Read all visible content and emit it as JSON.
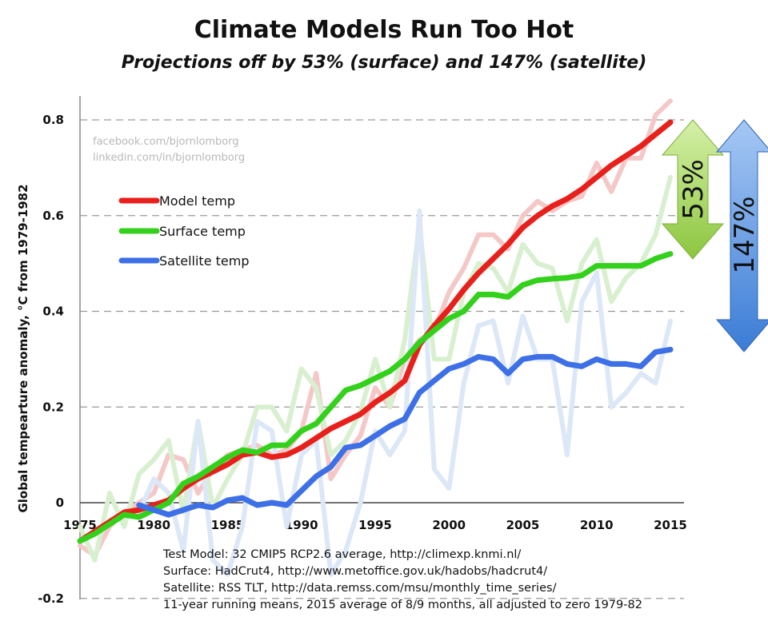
{
  "title": "Climate Models Run Too Hot",
  "subtitle": "Projections off by 53% (surface) and 147% (satellite)",
  "watermark": [
    "facebook.com/bjornlomborg",
    "linkedin.com/in/bjornlomborg"
  ],
  "notes": [
    "Test Model: 32 CMIP5 RCP2.6 average, http://climexp.knmi.nl/",
    "Surface: HadCrut4, http://www.metoffice.gov.uk/hadobs/hadcrut4/",
    "Satellite:  RSS TLT, http://data.remss.com/msu/monthly_time_series/",
    "11-year running means, 2015 average of 8/9 months, all adjusted to zero 1979-82"
  ],
  "annotations": {
    "surface_gap": "53%",
    "satellite_gap": "147%",
    "surface_arrow_color": "#9fd35a",
    "satellite_arrow_color": "#5b97e0"
  },
  "chart_data": {
    "type": "line",
    "title": "Climate Models Run Too Hot",
    "subtitle": "Projections off by 53% (surface) and 147% (satellite)",
    "xlabel": "",
    "ylabel": "Global tempearture anomaly, °C from 1979-1982",
    "xlim": [
      1975,
      2015
    ],
    "ylim": [
      -0.2,
      0.85
    ],
    "xticks": [
      1975,
      1980,
      1985,
      1990,
      1995,
      2000,
      2005,
      2010,
      2015
    ],
    "yticks": [
      -0.2,
      0,
      0.2,
      0.4,
      0.6,
      0.8
    ],
    "ytick_labels": [
      "-0.2",
      "0",
      "0.2",
      "0.4",
      "0.6",
      "0.8"
    ],
    "grid": "horizontal dashed",
    "legend_position": "top-left",
    "series": [
      {
        "name": "Model temp",
        "color": "#e8201c",
        "x": [
          1975,
          1976,
          1977,
          1978,
          1979,
          1980,
          1981,
          1982,
          1983,
          1984,
          1985,
          1986,
          1987,
          1988,
          1989,
          1990,
          1991,
          1992,
          1993,
          1994,
          1995,
          1996,
          1997,
          1998,
          1999,
          2000,
          2001,
          2002,
          2003,
          2004,
          2005,
          2006,
          2007,
          2008,
          2009,
          2010,
          2011,
          2012,
          2013,
          2014,
          2015
        ],
        "values": [
          -0.08,
          -0.06,
          -0.04,
          -0.02,
          -0.015,
          -0.005,
          0.005,
          0.03,
          0.05,
          0.065,
          0.08,
          0.1,
          0.105,
          0.095,
          0.1,
          0.115,
          0.135,
          0.155,
          0.17,
          0.185,
          0.21,
          0.23,
          0.255,
          0.33,
          0.37,
          0.405,
          0.445,
          0.48,
          0.51,
          0.54,
          0.575,
          0.6,
          0.62,
          0.635,
          0.655,
          0.68,
          0.705,
          0.725,
          0.745,
          0.77,
          0.795
        ]
      },
      {
        "name": "Surface temp",
        "color": "#33d11b",
        "x": [
          1975,
          1976,
          1977,
          1978,
          1979,
          1980,
          1981,
          1982,
          1983,
          1984,
          1985,
          1986,
          1987,
          1988,
          1989,
          1990,
          1991,
          1992,
          1993,
          1994,
          1995,
          1996,
          1997,
          1998,
          1999,
          2000,
          2001,
          2002,
          2003,
          2004,
          2005,
          2006,
          2007,
          2008,
          2009,
          2010,
          2011,
          2012,
          2013,
          2014,
          2015
        ],
        "values": [
          -0.08,
          -0.065,
          -0.045,
          -0.025,
          -0.03,
          -0.015,
          0.0,
          0.04,
          0.055,
          0.075,
          0.095,
          0.11,
          0.105,
          0.12,
          0.12,
          0.15,
          0.165,
          0.2,
          0.235,
          0.245,
          0.26,
          0.275,
          0.3,
          0.335,
          0.36,
          0.385,
          0.4,
          0.435,
          0.435,
          0.43,
          0.455,
          0.465,
          0.468,
          0.47,
          0.475,
          0.495,
          0.495,
          0.495,
          0.495,
          0.51,
          0.52
        ]
      },
      {
        "name": "Satellite temp",
        "color": "#3d6fe6",
        "x": [
          1979,
          1980,
          1981,
          1982,
          1983,
          1984,
          1985,
          1986,
          1987,
          1988,
          1989,
          1990,
          1991,
          1992,
          1993,
          1994,
          1995,
          1996,
          1997,
          1998,
          1999,
          2000,
          2001,
          2002,
          2003,
          2004,
          2005,
          2006,
          2007,
          2008,
          2009,
          2010,
          2011,
          2012,
          2013,
          2014,
          2015
        ],
        "values": [
          -0.005,
          -0.015,
          -0.025,
          -0.015,
          -0.005,
          -0.01,
          0.005,
          0.01,
          -0.005,
          0.0,
          -0.005,
          0.025,
          0.055,
          0.075,
          0.115,
          0.12,
          0.14,
          0.16,
          0.175,
          0.23,
          0.255,
          0.28,
          0.29,
          0.305,
          0.3,
          0.27,
          0.3,
          0.305,
          0.305,
          0.29,
          0.285,
          0.3,
          0.29,
          0.29,
          0.285,
          0.315,
          0.32
        ]
      },
      {
        "name": "",
        "style": "faint annual",
        "color": "#f5c8c8",
        "x": [
          1975,
          1976,
          1977,
          1978,
          1979,
          1980,
          1981,
          1982,
          1983,
          1984,
          1985,
          1986,
          1987,
          1988,
          1989,
          1990,
          1991,
          1992,
          1993,
          1994,
          1995,
          1996,
          1997,
          1998,
          1999,
          2000,
          2001,
          2002,
          2003,
          2004,
          2005,
          2006,
          2007,
          2008,
          2009,
          2010,
          2011,
          2012,
          2013,
          2014,
          2015
        ],
        "values": [
          -0.09,
          -0.11,
          -0.05,
          -0.02,
          0.0,
          0.02,
          0.1,
          0.09,
          0.02,
          0.07,
          0.1,
          0.11,
          0.12,
          0.1,
          0.11,
          0.15,
          0.27,
          0.05,
          0.1,
          0.14,
          0.24,
          0.2,
          0.3,
          0.34,
          0.36,
          0.44,
          0.49,
          0.56,
          0.56,
          0.53,
          0.6,
          0.63,
          0.61,
          0.63,
          0.64,
          0.71,
          0.65,
          0.72,
          0.72,
          0.81,
          0.84
        ]
      },
      {
        "name": "",
        "style": "faint annual",
        "color": "#d8f0cf",
        "x": [
          1975,
          1976,
          1977,
          1978,
          1979,
          1980,
          1981,
          1982,
          1983,
          1984,
          1985,
          1986,
          1987,
          1988,
          1989,
          1990,
          1991,
          1992,
          1993,
          1994,
          1995,
          1996,
          1997,
          1998,
          1999,
          2000,
          2001,
          2002,
          2003,
          2004,
          2005,
          2006,
          2007,
          2008,
          2009,
          2010,
          2011,
          2012,
          2013,
          2014,
          2015
        ],
        "values": [
          -0.05,
          -0.12,
          0.02,
          -0.05,
          0.06,
          0.09,
          0.13,
          -0.02,
          0.17,
          -0.01,
          0.05,
          0.1,
          0.2,
          0.2,
          0.15,
          0.28,
          0.24,
          0.1,
          0.13,
          0.19,
          0.3,
          0.2,
          0.34,
          0.58,
          0.3,
          0.3,
          0.44,
          0.5,
          0.49,
          0.44,
          0.54,
          0.5,
          0.49,
          0.38,
          0.5,
          0.55,
          0.42,
          0.47,
          0.5,
          0.56,
          0.68
        ]
      },
      {
        "name": "",
        "style": "faint annual",
        "color": "#dce7f7",
        "x": [
          1979,
          1980,
          1981,
          1982,
          1983,
          1984,
          1985,
          1986,
          1987,
          1988,
          1989,
          1990,
          1991,
          1992,
          1993,
          1994,
          1995,
          1996,
          1997,
          1998,
          1999,
          2000,
          2001,
          2002,
          2003,
          2004,
          2005,
          2006,
          2007,
          2008,
          2009,
          2010,
          2011,
          2012,
          2013,
          2014,
          2015
        ],
        "values": [
          -0.02,
          0.05,
          0.02,
          -0.1,
          0.17,
          -0.12,
          -0.15,
          -0.05,
          0.17,
          0.15,
          -0.05,
          0.1,
          0.13,
          -0.15,
          -0.1,
          0.0,
          0.15,
          0.1,
          0.15,
          0.61,
          0.07,
          0.03,
          0.25,
          0.37,
          0.38,
          0.25,
          0.39,
          0.3,
          0.3,
          0.1,
          0.42,
          0.48,
          0.2,
          0.23,
          0.27,
          0.25,
          0.38
        ]
      }
    ],
    "legend": [
      "Model temp",
      "Surface temp",
      "Satellite temp"
    ]
  }
}
